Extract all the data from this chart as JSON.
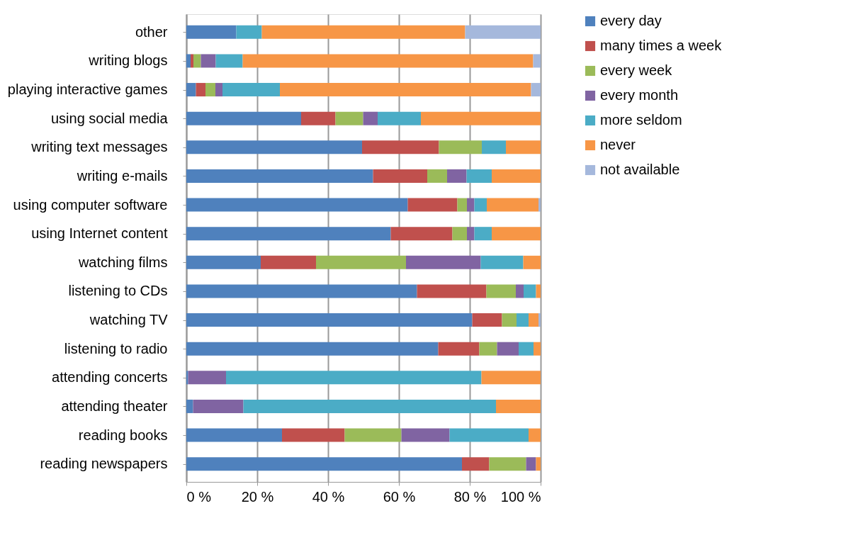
{
  "chart_data": {
    "type": "bar",
    "orientation": "horizontal",
    "stacked": true,
    "categories": [
      "other",
      "writing blogs",
      "playing interactive games",
      "using social media",
      "writing text messages",
      "writing e-mails",
      "using computer software",
      "using Internet content",
      "watching films",
      "listening to CDs",
      "watching TV",
      "listening to radio",
      "attending concerts",
      "attending theater",
      "reading books",
      "reading newspapers"
    ],
    "series": [
      {
        "name": "every day",
        "color": "#4f81bd",
        "values": [
          14.1,
          1.2,
          2.7,
          32.4,
          49.6,
          52.7,
          62.5,
          57.7,
          21.0,
          65.1,
          80.7,
          71.1,
          0.5,
          1.9,
          27.0,
          77.8
        ]
      },
      {
        "name": "many times a week",
        "color": "#c0504d",
        "values": [
          null,
          0.8,
          2.7,
          9.7,
          21.7,
          15.3,
          14.0,
          17.4,
          15.6,
          19.6,
          8.4,
          11.6,
          null,
          null,
          17.7,
          7.7
        ]
      },
      {
        "name": "every week",
        "color": "#9bbb59",
        "values": [
          null,
          2.1,
          2.8,
          7.8,
          12.1,
          5.6,
          2.7,
          4.1,
          25.4,
          8.3,
          4.1,
          5.0,
          null,
          null,
          16.0,
          10.4
        ]
      },
      {
        "name": "every month",
        "color": "#8064a2",
        "values": [
          null,
          4.2,
          2.0,
          4.1,
          null,
          5.5,
          2.1,
          2.1,
          21.1,
          2.2,
          null,
          6.1,
          10.7,
          14.2,
          13.6,
          2.8
        ]
      },
      {
        "name": "more seldom",
        "color": "#4bacc6",
        "values": [
          7.2,
          7.6,
          16.2,
          12.2,
          6.8,
          7.1,
          3.5,
          4.9,
          12.0,
          3.5,
          3.4,
          4.2,
          72.1,
          71.3,
          22.3,
          null
        ]
      },
      {
        "name": "never",
        "color": "#f79646",
        "values": [
          57.4,
          82.0,
          70.9,
          33.8,
          9.8,
          13.8,
          14.6,
          13.8,
          4.9,
          1.3,
          2.8,
          2.0,
          16.7,
          12.6,
          3.4,
          1.3
        ]
      },
      {
        "name": "not available",
        "color": "#a5b8dc",
        "values": [
          21.3,
          2.1,
          2.7,
          null,
          null,
          null,
          0.6,
          null,
          null,
          null,
          0.6,
          null,
          null,
          null,
          null,
          null
        ]
      }
    ],
    "xlim": [
      0,
      100
    ],
    "xticks": [
      {
        "value": 0,
        "label": "0 %"
      },
      {
        "value": 20,
        "label": "20 %"
      },
      {
        "value": 40,
        "label": "40 %"
      },
      {
        "value": 60,
        "label": "60 %"
      },
      {
        "value": 80,
        "label": "80 %"
      },
      {
        "value": 100,
        "label": "100 %"
      }
    ],
    "grid": "x",
    "legend": "right"
  }
}
